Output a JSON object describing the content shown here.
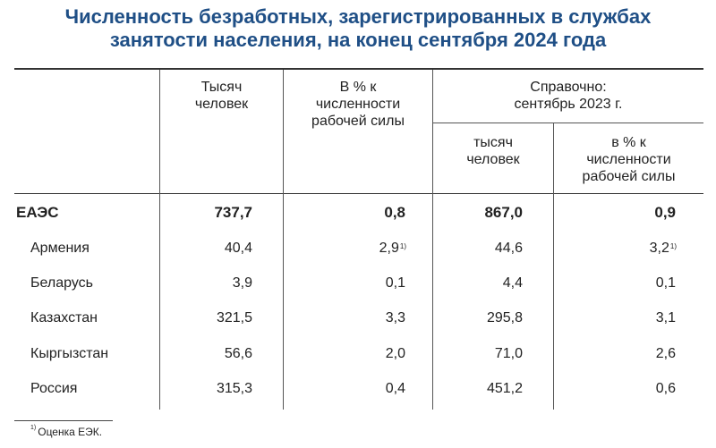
{
  "title": {
    "line1": "Численность безработных, зарегистрированных в службах",
    "line2": "занятости населения, на конец сентября 2024 года"
  },
  "header": {
    "col1": [
      "Тысяч",
      "человек"
    ],
    "col2": [
      "В % к",
      "численности",
      "рабочей силы"
    ],
    "reference": [
      "Справочно:",
      "сентябрь 2023 г."
    ],
    "col3": [
      "тысяч",
      "человек"
    ],
    "col4": [
      "в % к",
      "численности",
      "рабочей силы"
    ]
  },
  "rows": [
    {
      "name": "ЕАЭС",
      "v1": "737,7",
      "v2": "0,8",
      "v2_note": "",
      "v3": "867,0",
      "v4": "0,9",
      "v4_note": "",
      "bold": true
    },
    {
      "name": "Армения",
      "v1": "40,4",
      "v2": "2,9",
      "v2_note": "1)",
      "v3": "44,6",
      "v4": "3,2",
      "v4_note": "1)",
      "bold": false
    },
    {
      "name": "Беларусь",
      "v1": "3,9",
      "v2": "0,1",
      "v2_note": "",
      "v3": "4,4",
      "v4": "0,1",
      "v4_note": "",
      "bold": false
    },
    {
      "name": "Казахстан",
      "v1": "321,5",
      "v2": "3,3",
      "v2_note": "",
      "v3": "295,8",
      "v4": "3,1",
      "v4_note": "",
      "bold": false
    },
    {
      "name": "Кыргызстан",
      "v1": "56,6",
      "v2": "2,0",
      "v2_note": "",
      "v3": "71,0",
      "v4": "2,6",
      "v4_note": "",
      "bold": false
    },
    {
      "name": "Россия",
      "v1": "315,3",
      "v2": "0,4",
      "v2_note": "",
      "v3": "451,2",
      "v4": "0,6",
      "v4_note": "",
      "bold": false
    }
  ],
  "footnote": {
    "mark": "1)",
    "text": "Оценка ЕЭК."
  }
}
